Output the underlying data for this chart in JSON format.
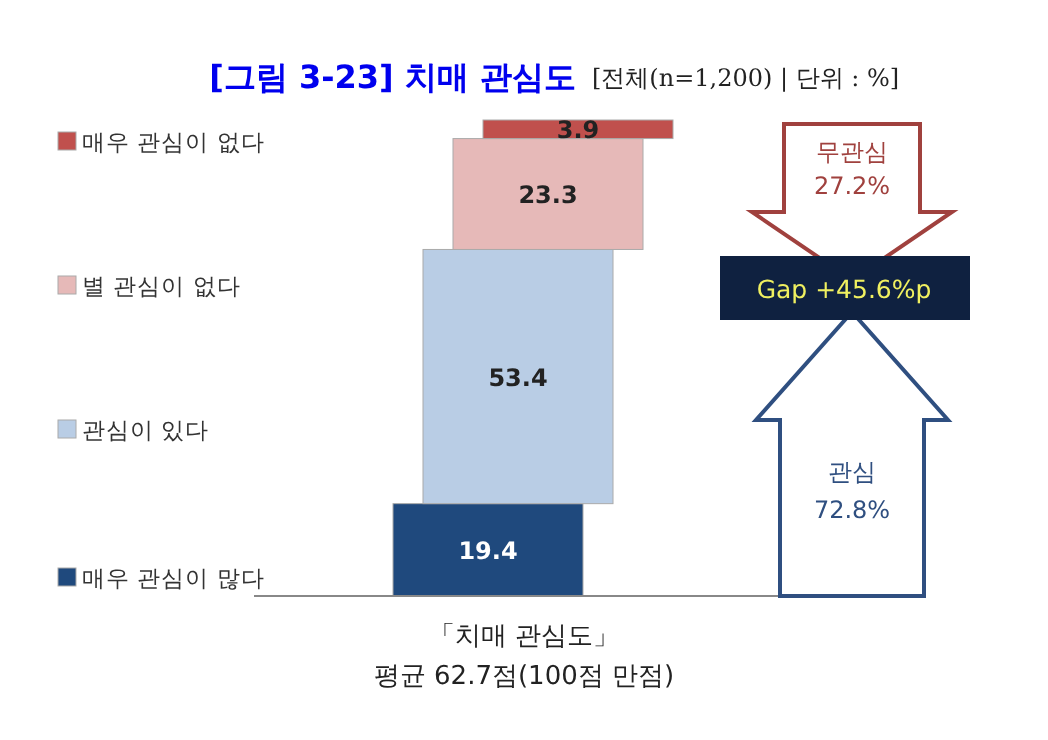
{
  "chart_data": {
    "type": "bar",
    "title": "[그림 3-23] 치매 관심도",
    "subtitle": "[전체(n=1,200) | 단위 : %]",
    "xlabel": "「치매 관심도」\n평균 62.7점(100점 만점)",
    "categories": [
      null
    ],
    "stacked": true,
    "series": [
      {
        "name": "매우 관심이 많다",
        "color": "#1f497d",
        "values": [
          19.4
        ]
      },
      {
        "name": "관심이 있다",
        "color": "#b9cde5",
        "values": [
          53.4
        ]
      },
      {
        "name": "별 관심이 없다",
        "color": "#e6b9b8",
        "values": [
          23.3
        ]
      },
      {
        "name": "매우 관심이 없다",
        "color": "#c0504d",
        "values": [
          3.9
        ]
      }
    ],
    "data_labels": true,
    "legend": "left",
    "annotations": [
      "무관심\n27.2%",
      "Gap +45.6%p",
      "관심\n72.8%"
    ]
  }
}
